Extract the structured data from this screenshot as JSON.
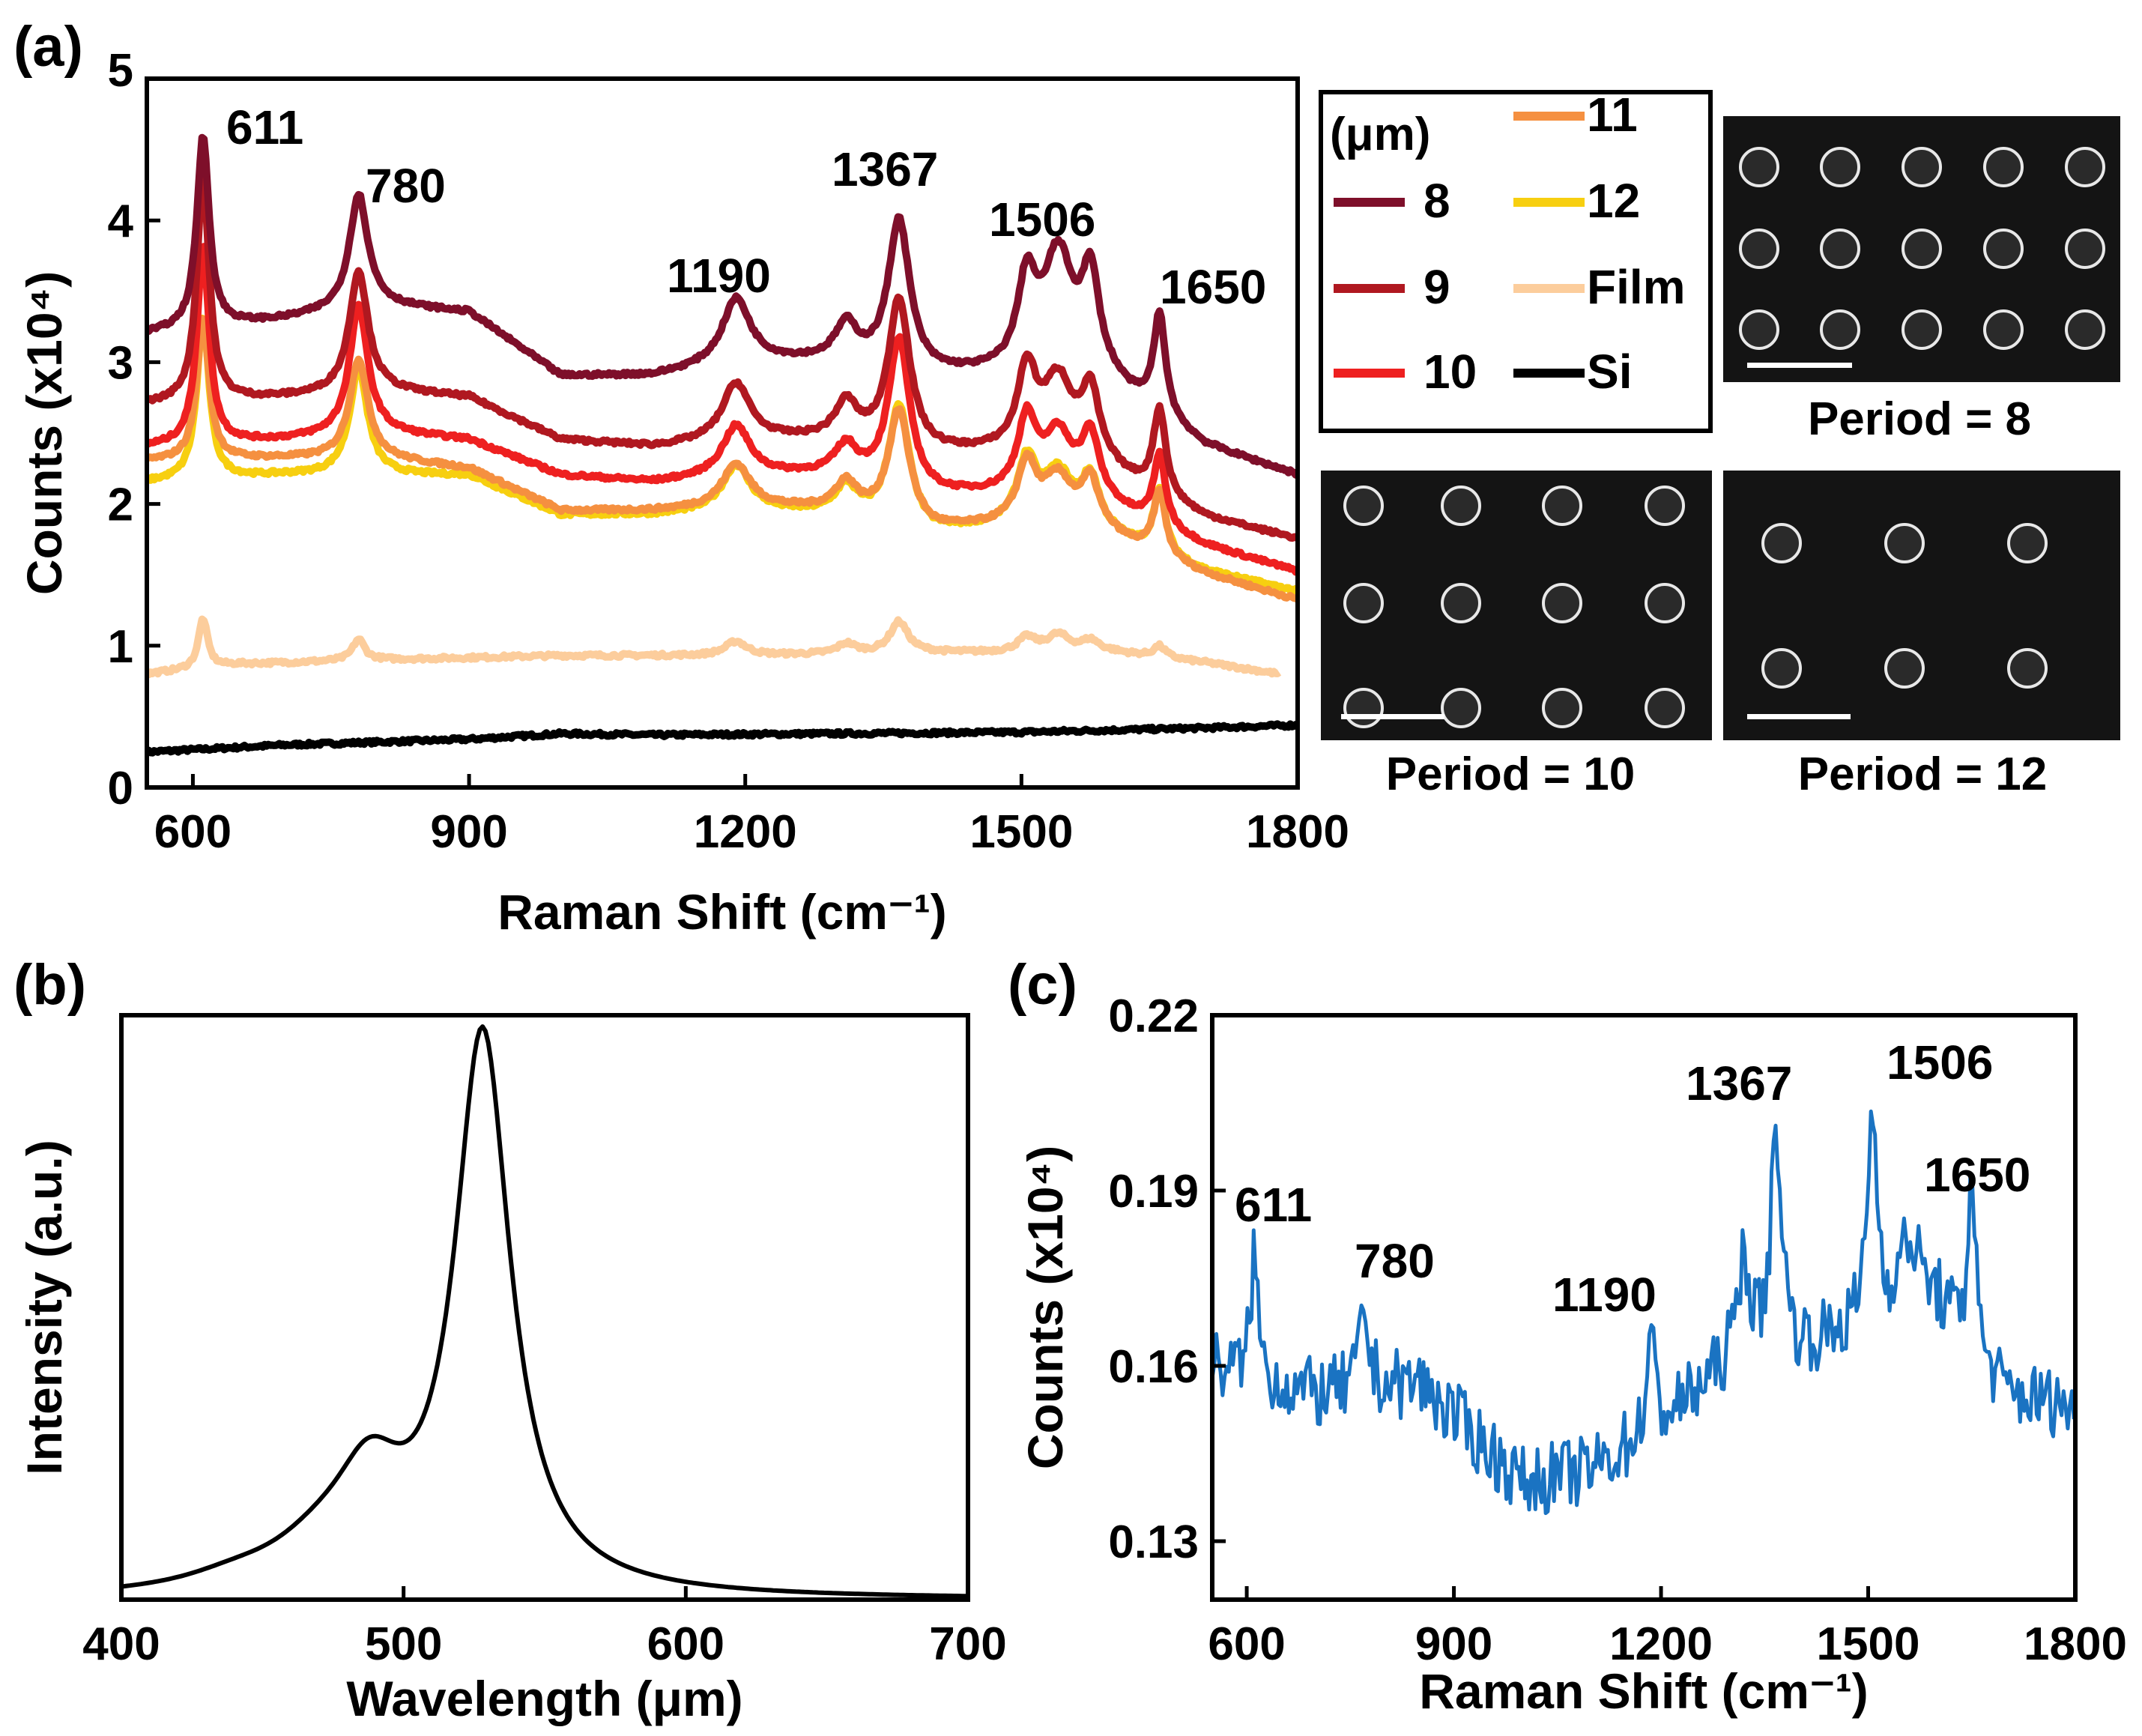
{
  "panels": {
    "a": {
      "label": "(a)"
    },
    "b": {
      "label": "(b)"
    },
    "c": {
      "label": "(c)"
    }
  },
  "chart_data": [
    {
      "id": "a",
      "type": "line",
      "xlabel": "Raman Shift (cm⁻¹)",
      "ylabel": "Counts (x10⁴)",
      "xlim": [
        550,
        1800
      ],
      "ylim": [
        0,
        5
      ],
      "xticks": [
        600,
        900,
        1200,
        1500,
        1800
      ],
      "yticks": [
        0,
        1,
        2,
        3,
        4,
        5
      ],
      "annotations": [
        "611",
        "780",
        "1190",
        "1367",
        "1506",
        "1650"
      ],
      "legend": {
        "title": "(μm)",
        "entries": [
          "8",
          "9",
          "10",
          "11",
          "12",
          "Film",
          "Si"
        ]
      },
      "series": [
        {
          "name": "8",
          "color": "#7e0f2a",
          "baseline": [
            [
              550,
              3.2
            ],
            [
              700,
              3.3
            ],
            [
              800,
              3.4
            ],
            [
              900,
              3.35
            ],
            [
              1000,
              2.9
            ],
            [
              1100,
              2.9
            ],
            [
              1200,
              3.0
            ],
            [
              1300,
              3.0
            ],
            [
              1400,
              2.9
            ],
            [
              1500,
              2.9
            ],
            [
              1600,
              2.8
            ],
            [
              1700,
              2.4
            ],
            [
              1800,
              2.2
            ]
          ],
          "peaks": [
            [
              611,
              1.35,
              8
            ],
            [
              780,
              0.8,
              12
            ],
            [
              1190,
              0.45,
              18
            ],
            [
              1310,
              0.25,
              14
            ],
            [
              1367,
              1.05,
              14
            ],
            [
              1506,
              0.6,
              12
            ],
            [
              1540,
              0.85,
              20
            ],
            [
              1575,
              0.7,
              12
            ],
            [
              1650,
              0.7,
              8
            ]
          ]
        },
        {
          "name": "9",
          "color": "#b01820",
          "baseline": [
            [
              550,
              2.7
            ],
            [
              700,
              2.75
            ],
            [
              800,
              2.8
            ],
            [
              900,
              2.75
            ],
            [
              1000,
              2.45
            ],
            [
              1100,
              2.4
            ],
            [
              1200,
              2.45
            ],
            [
              1300,
              2.45
            ],
            [
              1400,
              2.35
            ],
            [
              1500,
              2.35
            ],
            [
              1600,
              2.2
            ],
            [
              1700,
              1.9
            ],
            [
              1800,
              1.75
            ]
          ],
          "peaks": [
            [
              611,
              1.6,
              8
            ],
            [
              780,
              0.85,
              12
            ],
            [
              1190,
              0.4,
              18
            ],
            [
              1310,
              0.25,
              14
            ],
            [
              1367,
              1.05,
              14
            ],
            [
              1506,
              0.55,
              12
            ],
            [
              1540,
              0.55,
              20
            ],
            [
              1575,
              0.5,
              12
            ],
            [
              1650,
              0.6,
              8
            ]
          ]
        },
        {
          "name": "10",
          "color": "#ee2020",
          "baseline": [
            [
              550,
              2.4
            ],
            [
              700,
              2.45
            ],
            [
              800,
              2.5
            ],
            [
              900,
              2.45
            ],
            [
              1000,
              2.2
            ],
            [
              1100,
              2.15
            ],
            [
              1200,
              2.2
            ],
            [
              1300,
              2.2
            ],
            [
              1400,
              2.05
            ],
            [
              1500,
              2.05
            ],
            [
              1600,
              1.95
            ],
            [
              1700,
              1.7
            ],
            [
              1800,
              1.52
            ]
          ],
          "peaks": [
            [
              611,
              1.4,
              8
            ],
            [
              780,
              0.9,
              12
            ],
            [
              1190,
              0.35,
              18
            ],
            [
              1310,
              0.2,
              14
            ],
            [
              1367,
              1.05,
              14
            ],
            [
              1506,
              0.5,
              12
            ],
            [
              1540,
              0.45,
              20
            ],
            [
              1575,
              0.45,
              12
            ],
            [
              1650,
              0.5,
              8
            ]
          ]
        },
        {
          "name": "11",
          "color": "#f59040",
          "baseline": [
            [
              550,
              2.3
            ],
            [
              700,
              2.32
            ],
            [
              800,
              2.32
            ],
            [
              900,
              2.25
            ],
            [
              1000,
              1.95
            ],
            [
              1100,
              1.95
            ],
            [
              1200,
              1.98
            ],
            [
              1300,
              1.95
            ],
            [
              1400,
              1.8
            ],
            [
              1500,
              1.85
            ],
            [
              1600,
              1.75
            ],
            [
              1700,
              1.5
            ],
            [
              1800,
              1.32
            ]
          ],
          "peaks": [
            [
              611,
              1.0,
              8
            ],
            [
              780,
              0.7,
              12
            ],
            [
              1190,
              0.3,
              18
            ],
            [
              1310,
              0.2,
              14
            ],
            [
              1367,
              0.8,
              14
            ],
            [
              1506,
              0.4,
              12
            ],
            [
              1540,
              0.35,
              20
            ],
            [
              1575,
              0.35,
              12
            ],
            [
              1650,
              0.45,
              8
            ]
          ]
        },
        {
          "name": "12",
          "color": "#f7cf10",
          "baseline": [
            [
              550,
              2.15
            ],
            [
              700,
              2.2
            ],
            [
              800,
              2.2
            ],
            [
              900,
              2.2
            ],
            [
              1000,
              1.92
            ],
            [
              1100,
              1.92
            ],
            [
              1200,
              1.95
            ],
            [
              1300,
              1.92
            ],
            [
              1400,
              1.78
            ],
            [
              1500,
              1.85
            ],
            [
              1600,
              1.75
            ],
            [
              1700,
              1.52
            ],
            [
              1800,
              1.38
            ]
          ],
          "peaks": [
            [
              611,
              1.15,
              8
            ],
            [
              780,
              0.75,
              12
            ],
            [
              1190,
              0.32,
              18
            ],
            [
              1310,
              0.2,
              14
            ],
            [
              1367,
              0.85,
              14
            ],
            [
              1506,
              0.42,
              12
            ],
            [
              1540,
              0.38,
              20
            ],
            [
              1575,
              0.36,
              12
            ],
            [
              1650,
              0.45,
              8
            ]
          ]
        },
        {
          "name": "Film",
          "color": "#fccd9c",
          "baseline": [
            [
              550,
              0.8
            ],
            [
              650,
              0.87
            ],
            [
              800,
              0.9
            ],
            [
              1000,
              0.93
            ],
            [
              1200,
              0.93
            ],
            [
              1400,
              0.95
            ],
            [
              1600,
              0.95
            ],
            [
              1700,
              0.88
            ],
            [
              1780,
              0.8
            ]
          ],
          "peaks": [
            [
              611,
              0.35,
              6
            ],
            [
              780,
              0.15,
              8
            ],
            [
              1190,
              0.1,
              14
            ],
            [
              1310,
              0.07,
              12
            ],
            [
              1367,
              0.22,
              12
            ],
            [
              1506,
              0.1,
              12
            ],
            [
              1540,
              0.12,
              15
            ],
            [
              1575,
              0.08,
              12
            ],
            [
              1650,
              0.08,
              8
            ]
          ]
        },
        {
          "name": "Si",
          "color": "#000000",
          "baseline": [
            [
              550,
              0.25
            ],
            [
              700,
              0.3
            ],
            [
              900,
              0.34
            ],
            [
              1000,
              0.38
            ],
            [
              1100,
              0.37
            ],
            [
              1300,
              0.38
            ],
            [
              1500,
              0.39
            ],
            [
              1700,
              0.42
            ],
            [
              1800,
              0.44
            ]
          ],
          "peaks": []
        }
      ]
    },
    {
      "id": "b",
      "type": "line",
      "xlabel": "Wavelength (μm)",
      "ylabel": "Intensity (a.u.)",
      "xlim": [
        400,
        700
      ],
      "ylim": [
        0,
        1.05
      ],
      "xticks": [
        400,
        500,
        600,
        700
      ],
      "series": [
        {
          "name": "PL",
          "color": "#000000",
          "baseline": [
            [
              400,
              0.0
            ],
            [
              700,
              0.0
            ]
          ],
          "peaks": [
            [
              528,
              1.0,
              12
            ],
            [
              488,
              0.17,
              15
            ],
            [
              470,
              0.06,
              22
            ],
            [
              440,
              0.02,
              22
            ]
          ]
        }
      ]
    },
    {
      "id": "c",
      "type": "line",
      "xlabel": "Raman Shift (cm⁻¹)",
      "ylabel": "Counts (x10⁴)",
      "xlim": [
        550,
        1800
      ],
      "ylim": [
        0.12,
        0.22
      ],
      "xticks": [
        600,
        900,
        1200,
        1500,
        1800
      ],
      "yticks": [
        0.13,
        0.16,
        0.19,
        0.22
      ],
      "ytick_labels": [
        "0.13",
        "0.16",
        "0.19",
        "0.22"
      ],
      "annotations": [
        "611",
        "780",
        "1190",
        "1367",
        "1506",
        "1650"
      ],
      "series": [
        {
          "name": "spectrum",
          "color": "#1a73c2",
          "noise": 0.006,
          "baseline": [
            [
              550,
              0.16
            ],
            [
              700,
              0.155
            ],
            [
              850,
              0.157
            ],
            [
              1000,
              0.14
            ],
            [
              1100,
              0.142
            ],
            [
              1200,
              0.15
            ],
            [
              1300,
              0.16
            ],
            [
              1400,
              0.162
            ],
            [
              1500,
              0.167
            ],
            [
              1600,
              0.17
            ],
            [
              1700,
              0.155
            ],
            [
              1800,
              0.153
            ]
          ],
          "peaks": [
            [
              611,
              0.022,
              6
            ],
            [
              770,
              0.013,
              8
            ],
            [
              1185,
              0.016,
              7
            ],
            [
              1320,
              0.018,
              10
            ],
            [
              1367,
              0.038,
              10
            ],
            [
              1506,
              0.036,
              8
            ],
            [
              1560,
              0.012,
              20
            ],
            [
              1650,
              0.033,
              6
            ]
          ]
        }
      ]
    }
  ],
  "images": {
    "p8": {
      "caption": "Period = 8"
    },
    "p10": {
      "caption": "Period = 10"
    },
    "p12": {
      "caption": "Period = 12"
    }
  }
}
